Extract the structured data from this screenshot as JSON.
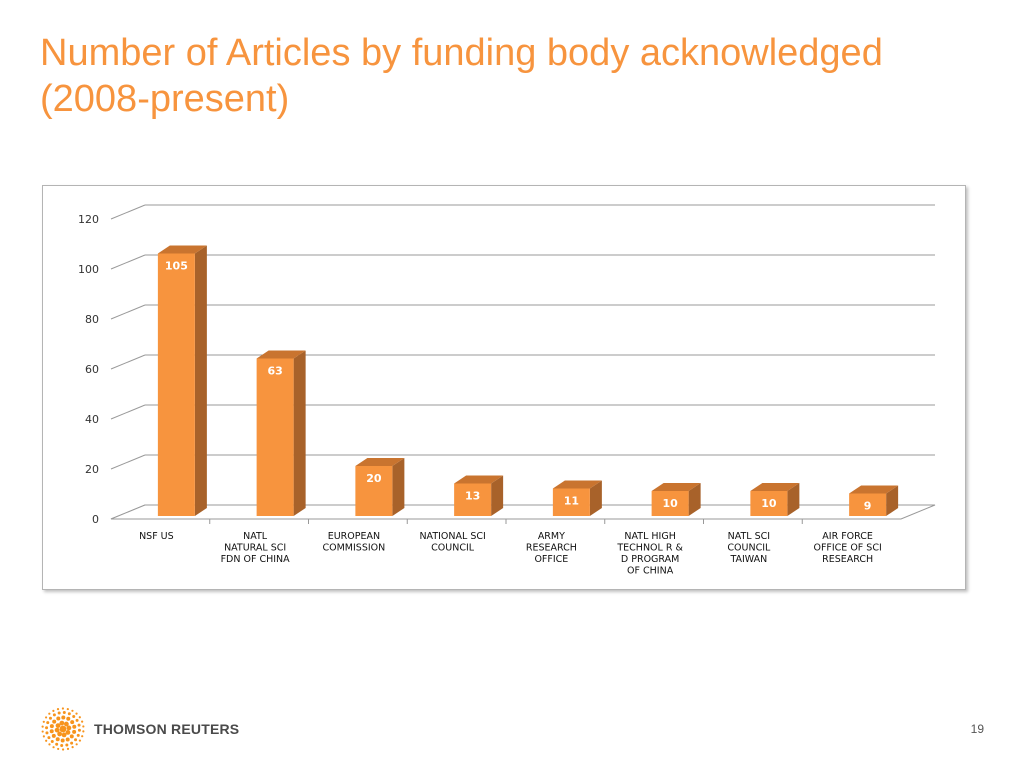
{
  "slide": {
    "title": "Number of Articles by funding body acknowledged (2008-present)",
    "page_number": "19"
  },
  "logo": {
    "text": "THOMSON REUTERS"
  },
  "colors": {
    "title": "#F7943E",
    "bar_front": "#F7943E",
    "bar_side": "#A8622A",
    "bar_top": "#C9742F",
    "grid": "#999999",
    "logo_orange": "#F7941D"
  },
  "chart_data": {
    "type": "bar",
    "categories": [
      [
        "NSF US"
      ],
      [
        "NATL",
        "NATURAL SCI",
        "FDN OF CHINA"
      ],
      [
        "EUROPEAN",
        "COMMISSION"
      ],
      [
        "NATIONAL SCI",
        "COUNCIL"
      ],
      [
        "ARMY",
        "RESEARCH",
        "OFFICE"
      ],
      [
        "NATL HIGH",
        "TECHNOL R &",
        "D PROGRAM",
        "OF CHINA"
      ],
      [
        "NATL SCI",
        "COUNCIL",
        "TAIWAN"
      ],
      [
        "AIR FORCE",
        "OFFICE OF SCI",
        "RESEARCH"
      ]
    ],
    "values": [
      105,
      63,
      20,
      13,
      11,
      10,
      10,
      9
    ],
    "ylim": [
      0,
      120
    ],
    "yticks": [
      0,
      20,
      40,
      60,
      80,
      100,
      120
    ],
    "grid": true,
    "style": "3d",
    "data_labels": true
  }
}
